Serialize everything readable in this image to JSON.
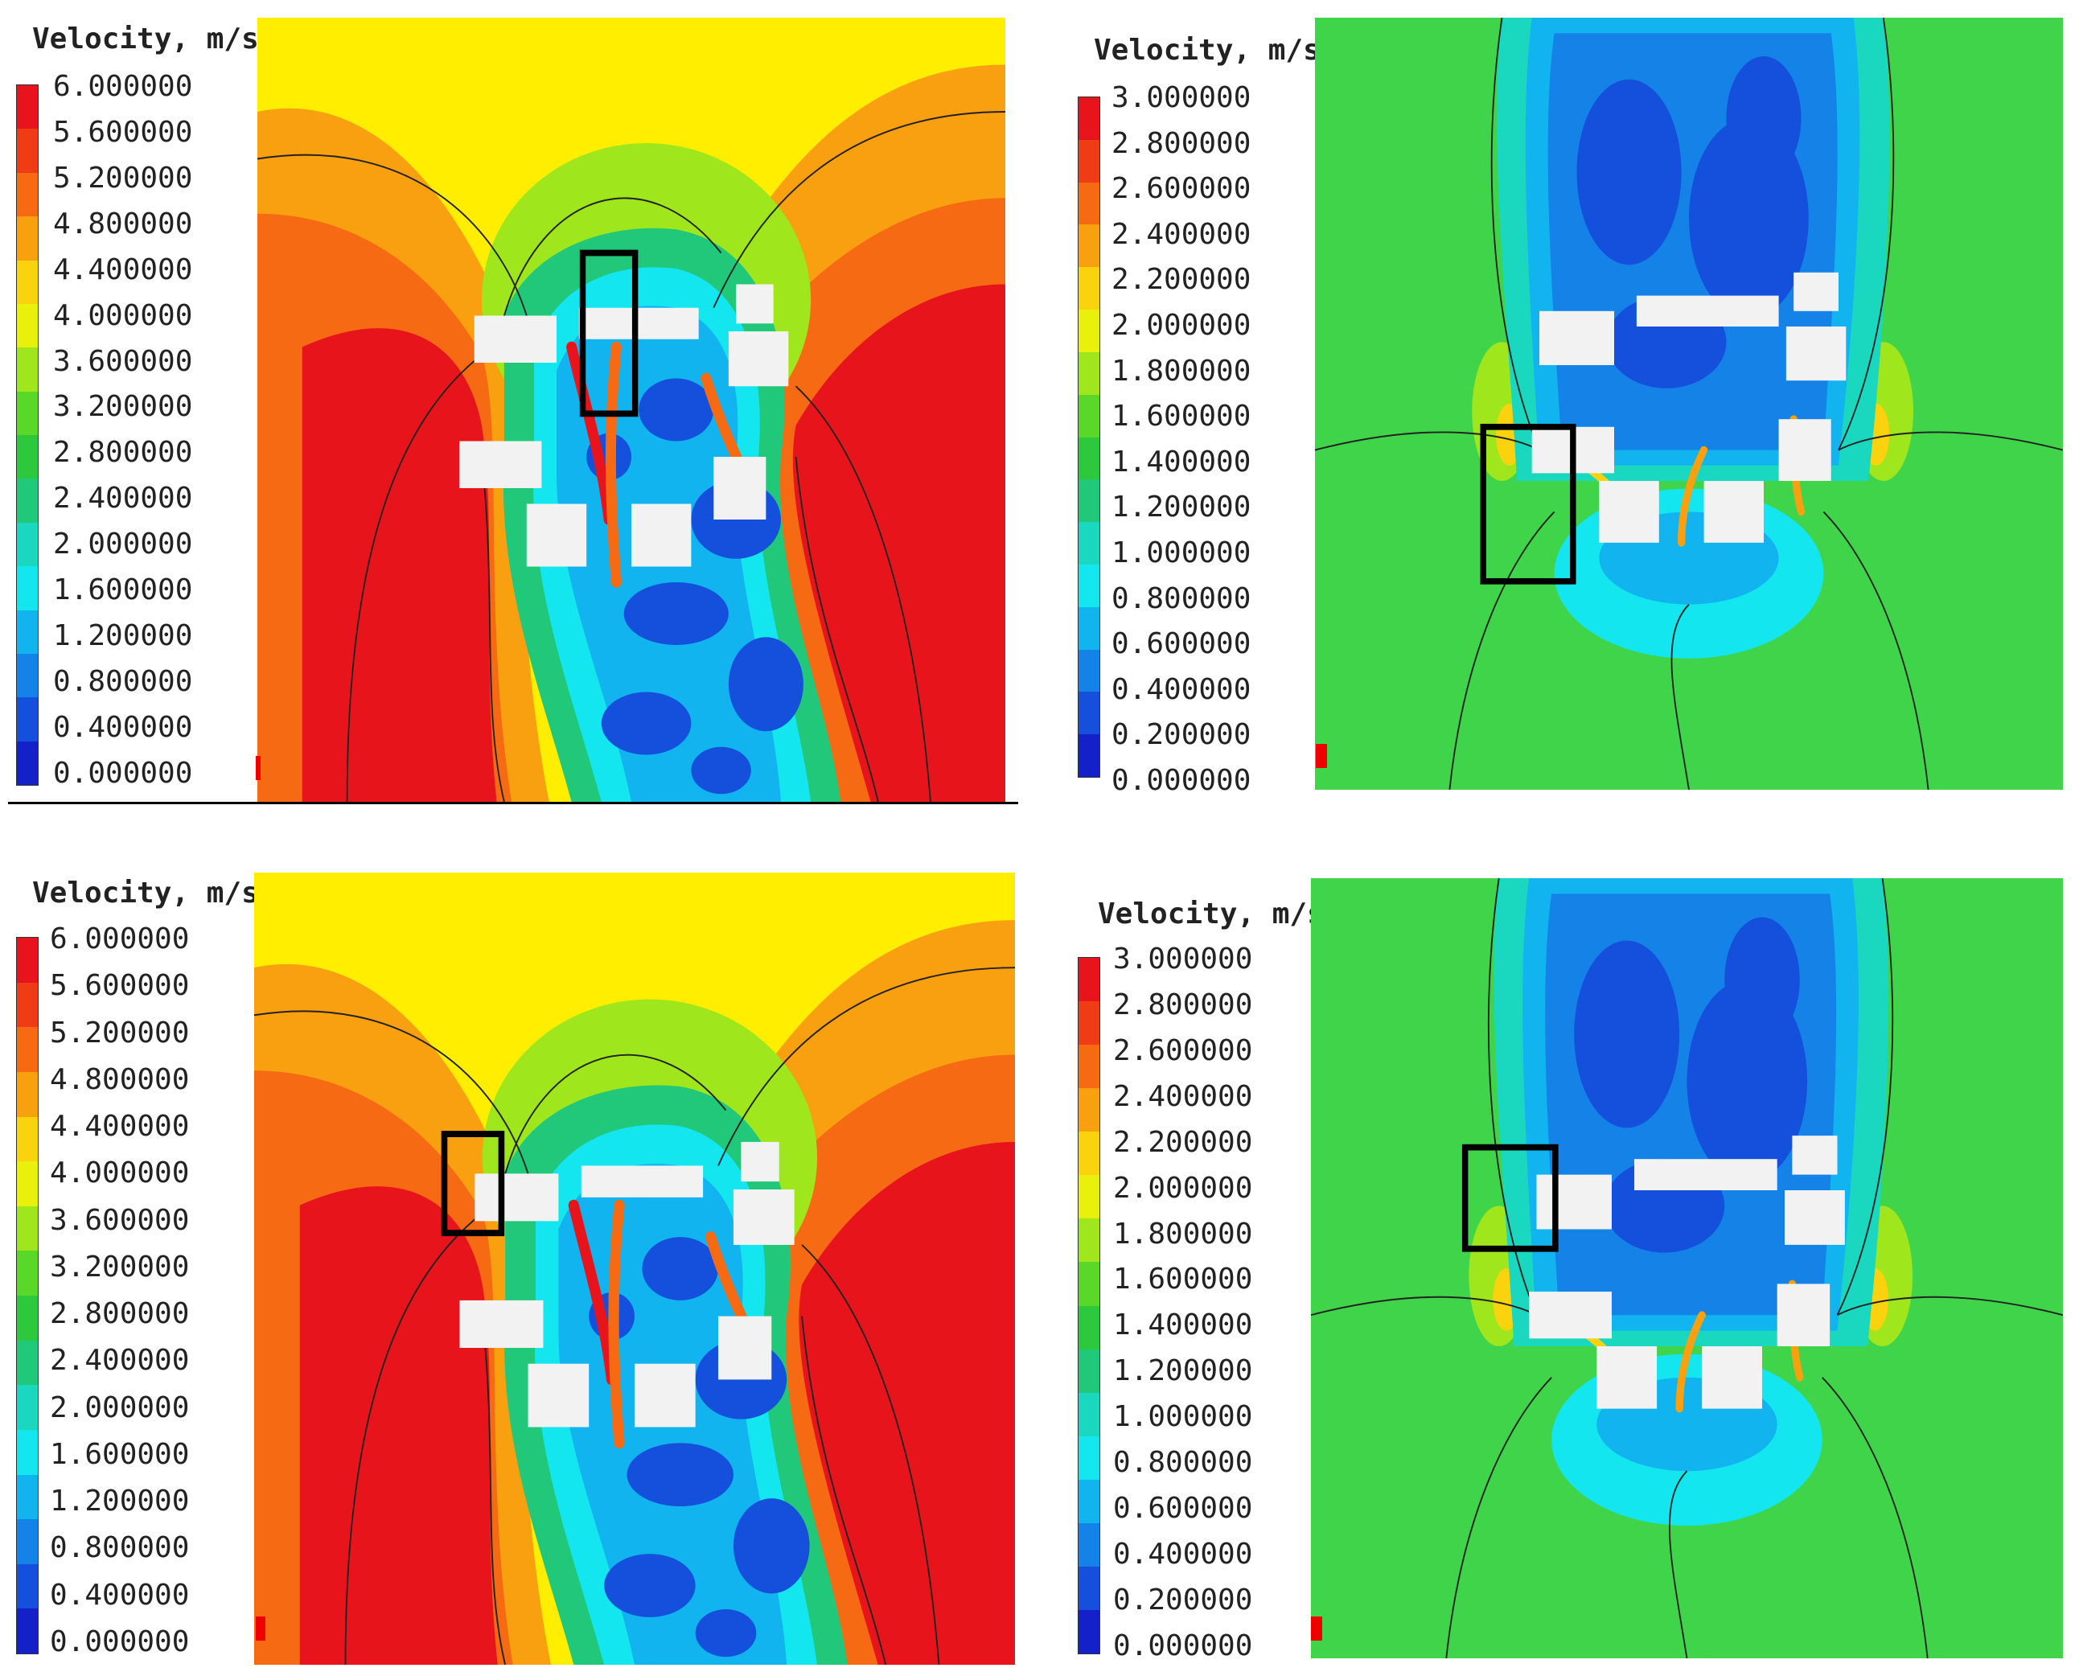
{
  "panels": [
    {
      "id": "top-left",
      "legend": {
        "title": "Velocity, m/s",
        "ticks": [
          "6.000000",
          "5.600000",
          "5.200000",
          "4.800000",
          "4.400000",
          "4.000000",
          "3.600000",
          "3.200000",
          "2.800000",
          "2.400000",
          "2.000000",
          "1.600000",
          "1.200000",
          "0.800000",
          "0.400000",
          "0.000000"
        ]
      },
      "background": "#ffee00",
      "palette": "high"
    },
    {
      "id": "top-right",
      "legend": {
        "title": "Velocity, m/s",
        "ticks": [
          "3.000000",
          "2.800000",
          "2.600000",
          "2.400000",
          "2.200000",
          "2.000000",
          "1.800000",
          "1.600000",
          "1.400000",
          "1.200000",
          "1.000000",
          "0.800000",
          "0.600000",
          "0.400000",
          "0.200000",
          "0.000000"
        ]
      },
      "background": "#3fd44a",
      "palette": "low"
    },
    {
      "id": "bottom-left",
      "legend": {
        "title": "Velocity, m/s",
        "ticks": [
          "6.000000",
          "5.600000",
          "5.200000",
          "4.800000",
          "4.400000",
          "4.000000",
          "3.600000",
          "3.200000",
          "2.800000",
          "2.400000",
          "2.000000",
          "1.600000",
          "1.200000",
          "0.800000",
          "0.400000",
          "0.000000"
        ]
      },
      "background": "#ffee00",
      "palette": "high"
    },
    {
      "id": "bottom-right",
      "legend": {
        "title": "Velocity, m/s",
        "ticks": [
          "3.000000",
          "2.800000",
          "2.600000",
          "2.400000",
          "2.200000",
          "2.000000",
          "1.800000",
          "1.600000",
          "1.400000",
          "1.200000",
          "1.000000",
          "0.800000",
          "0.600000",
          "0.400000",
          "0.200000",
          "0.000000"
        ]
      },
      "background": "#3fd44a",
      "palette": "low"
    }
  ],
  "colorbar_colors": [
    "#e8141c",
    "#f03c14",
    "#f56a12",
    "#f9a010",
    "#fbd20e",
    "#e8f00c",
    "#9fe61c",
    "#5ad82a",
    "#2ec83c",
    "#22c87a",
    "#1ad8c0",
    "#14e6f0",
    "#12b4f0",
    "#1482e6",
    "#1450dc",
    "#1420c8"
  ]
}
